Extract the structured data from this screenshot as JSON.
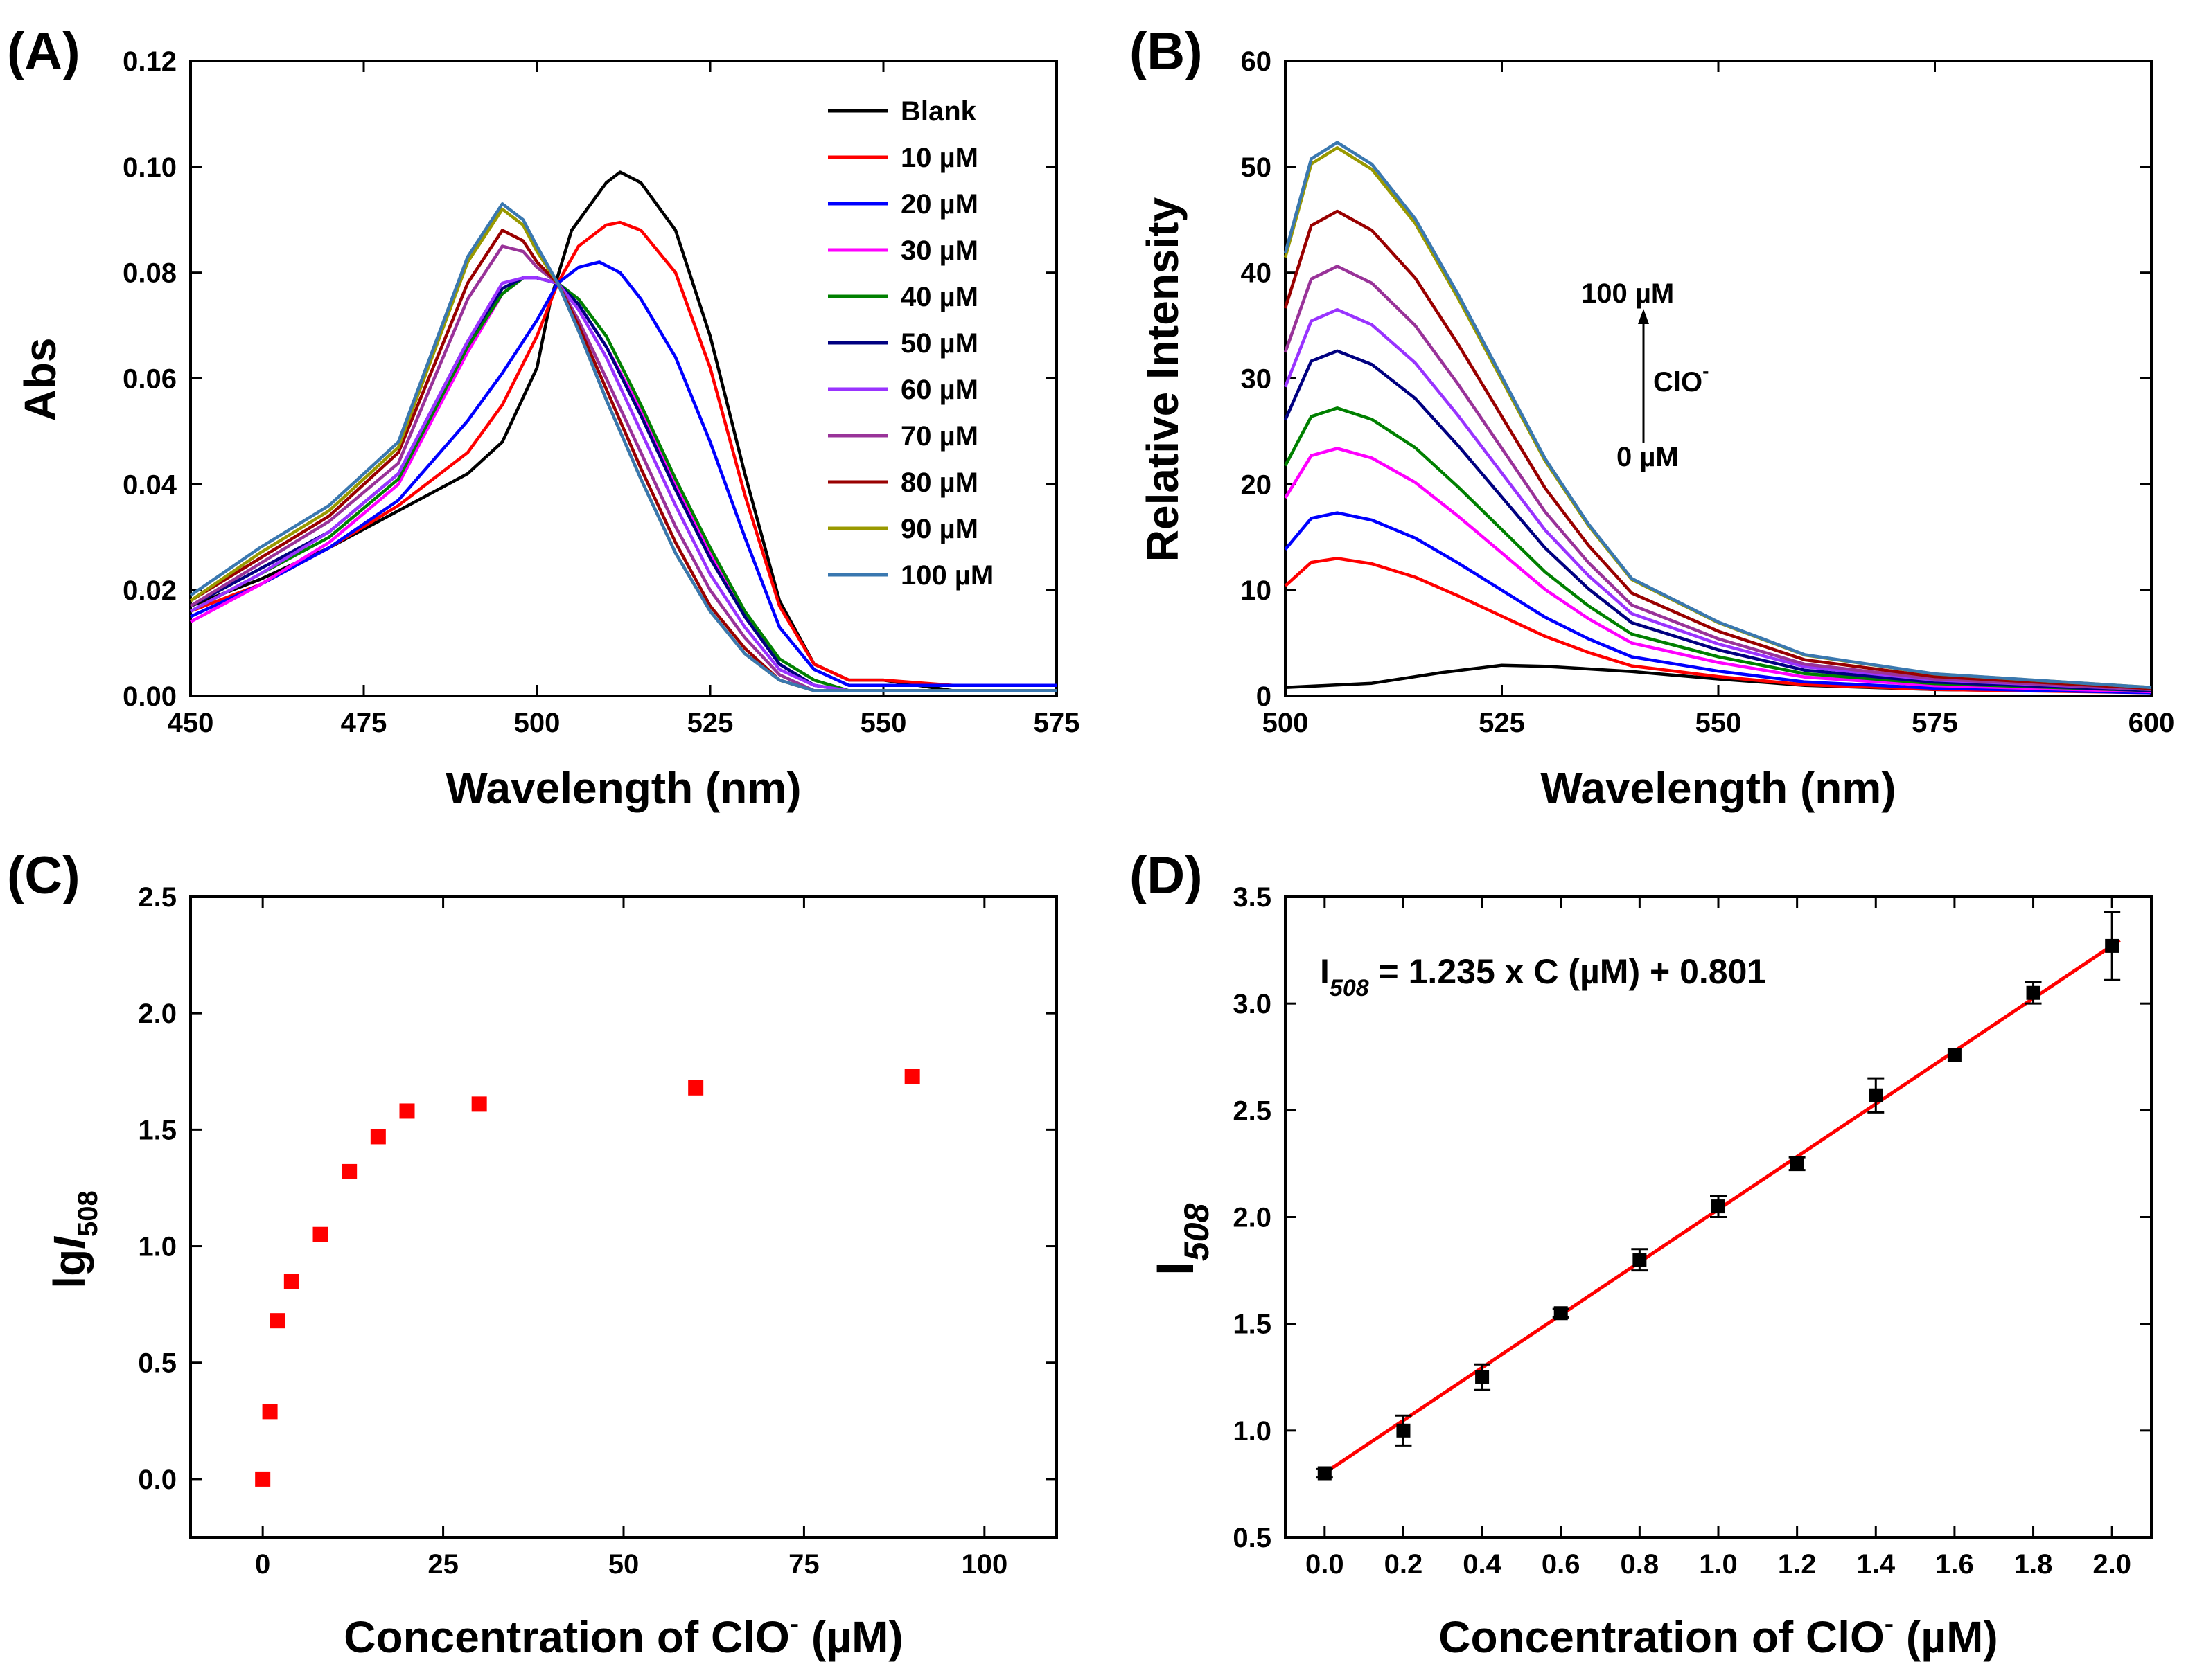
{
  "chart_data": [
    {
      "id": "A",
      "type": "line",
      "panel_label": "(A)",
      "xlabel": "Wavelength (nm)",
      "ylabel": "Abs",
      "xlim": [
        450,
        575
      ],
      "ylim": [
        0.0,
        0.12
      ],
      "xticks": [
        450,
        475,
        500,
        525,
        550,
        575
      ],
      "yticks": [
        "0.00",
        "0.02",
        "0.04",
        "0.06",
        "0.08",
        "0.10",
        "0.12"
      ],
      "legend_position": "top-right",
      "series": [
        {
          "name": "Blank",
          "color": "#000000",
          "x": [
            450,
            460,
            470,
            480,
            490,
            495,
            500,
            502,
            505,
            510,
            512,
            515,
            520,
            525,
            530,
            535,
            540,
            545,
            550,
            560,
            575
          ],
          "y": [
            0.017,
            0.022,
            0.028,
            0.035,
            0.042,
            0.048,
            0.062,
            0.075,
            0.088,
            0.097,
            0.099,
            0.097,
            0.088,
            0.068,
            0.042,
            0.018,
            0.006,
            0.003,
            0.003,
            0.001,
            0.001
          ]
        },
        {
          "name": "10 µM",
          "color": "#ff0000",
          "x": [
            450,
            460,
            470,
            480,
            490,
            495,
            500,
            503,
            506,
            510,
            512,
            515,
            520,
            525,
            530,
            535,
            540,
            545,
            550,
            560,
            575
          ],
          "y": [
            0.016,
            0.021,
            0.028,
            0.036,
            0.046,
            0.055,
            0.068,
            0.078,
            0.085,
            0.089,
            0.0895,
            0.088,
            0.08,
            0.062,
            0.038,
            0.017,
            0.006,
            0.003,
            0.003,
            0.002,
            0.002
          ]
        },
        {
          "name": "20 µM",
          "color": "#0000ff",
          "x": [
            450,
            460,
            470,
            480,
            490,
            495,
            500,
            503,
            506,
            509,
            512,
            515,
            520,
            525,
            530,
            535,
            540,
            545,
            550,
            560,
            575
          ],
          "y": [
            0.015,
            0.021,
            0.028,
            0.037,
            0.052,
            0.061,
            0.071,
            0.078,
            0.081,
            0.082,
            0.08,
            0.075,
            0.064,
            0.048,
            0.03,
            0.013,
            0.005,
            0.002,
            0.002,
            0.002,
            0.002
          ]
        },
        {
          "name": "30 µM",
          "color": "#ff00ff",
          "x": [
            450,
            460,
            470,
            480,
            490,
            495,
            498,
            500,
            503,
            506,
            510,
            515,
            520,
            525,
            530,
            535,
            540,
            545,
            550,
            560,
            575
          ],
          "y": [
            0.014,
            0.021,
            0.029,
            0.04,
            0.065,
            0.076,
            0.079,
            0.079,
            0.078,
            0.074,
            0.066,
            0.054,
            0.04,
            0.027,
            0.015,
            0.006,
            0.002,
            0.001,
            0.001,
            0.001,
            0.001
          ]
        },
        {
          "name": "40 µM",
          "color": "#008000",
          "x": [
            450,
            460,
            470,
            480,
            490,
            495,
            498,
            500,
            503,
            506,
            510,
            515,
            520,
            525,
            530,
            535,
            540,
            545,
            550,
            560,
            575
          ],
          "y": [
            0.016,
            0.023,
            0.03,
            0.041,
            0.066,
            0.076,
            0.079,
            0.079,
            0.078,
            0.075,
            0.068,
            0.055,
            0.041,
            0.028,
            0.016,
            0.007,
            0.003,
            0.001,
            0.001,
            0.001,
            0.001
          ]
        },
        {
          "name": "50 µM",
          "color": "#000080",
          "x": [
            450,
            460,
            470,
            480,
            490,
            495,
            498,
            500,
            503,
            506,
            510,
            515,
            520,
            525,
            530,
            535,
            540,
            545,
            550,
            560,
            575
          ],
          "y": [
            0.017,
            0.024,
            0.031,
            0.042,
            0.067,
            0.077,
            0.079,
            0.079,
            0.078,
            0.074,
            0.066,
            0.053,
            0.039,
            0.026,
            0.015,
            0.006,
            0.002,
            0.001,
            0.001,
            0.001,
            0.001
          ]
        },
        {
          "name": "60 µM",
          "color": "#9933ff",
          "x": [
            450,
            460,
            470,
            480,
            490,
            495,
            498,
            500,
            503,
            506,
            510,
            515,
            520,
            525,
            530,
            535,
            540,
            545,
            550,
            560,
            575
          ],
          "y": [
            0.016,
            0.023,
            0.031,
            0.042,
            0.067,
            0.078,
            0.079,
            0.079,
            0.078,
            0.073,
            0.064,
            0.05,
            0.036,
            0.023,
            0.013,
            0.005,
            0.002,
            0.001,
            0.001,
            0.001,
            0.001
          ]
        },
        {
          "name": "70 µM",
          "color": "#993399",
          "x": [
            450,
            460,
            470,
            480,
            490,
            495,
            498,
            500,
            503,
            506,
            510,
            515,
            520,
            525,
            530,
            535,
            540,
            545,
            550,
            560,
            575
          ],
          "y": [
            0.017,
            0.025,
            0.033,
            0.044,
            0.075,
            0.085,
            0.084,
            0.081,
            0.078,
            0.071,
            0.06,
            0.046,
            0.032,
            0.02,
            0.011,
            0.004,
            0.001,
            0.001,
            0.001,
            0.001,
            0.001
          ]
        },
        {
          "name": "80 µM",
          "color": "#990000",
          "x": [
            450,
            460,
            470,
            480,
            490,
            495,
            498,
            500,
            503,
            506,
            510,
            515,
            520,
            525,
            530,
            535,
            540,
            545,
            550,
            560,
            575
          ],
          "y": [
            0.018,
            0.026,
            0.034,
            0.046,
            0.078,
            0.088,
            0.086,
            0.082,
            0.078,
            0.07,
            0.058,
            0.043,
            0.029,
            0.017,
            0.009,
            0.003,
            0.001,
            0.001,
            0.001,
            0.001,
            0.001
          ]
        },
        {
          "name": "90 µM",
          "color": "#999900",
          "x": [
            450,
            460,
            470,
            480,
            490,
            495,
            498,
            500,
            503,
            506,
            510,
            515,
            520,
            525,
            530,
            535,
            540,
            545,
            550,
            560,
            575
          ],
          "y": [
            0.018,
            0.027,
            0.035,
            0.047,
            0.082,
            0.092,
            0.089,
            0.084,
            0.078,
            0.069,
            0.056,
            0.041,
            0.027,
            0.016,
            0.008,
            0.003,
            0.001,
            0.001,
            0.001,
            0.001,
            0.001
          ]
        },
        {
          "name": "100 µM",
          "color": "#3a78b0",
          "x": [
            450,
            460,
            470,
            480,
            490,
            495,
            498,
            500,
            503,
            506,
            510,
            515,
            520,
            525,
            530,
            535,
            540,
            545,
            550,
            560,
            575
          ],
          "y": [
            0.019,
            0.028,
            0.036,
            0.048,
            0.083,
            0.093,
            0.09,
            0.085,
            0.078,
            0.069,
            0.056,
            0.041,
            0.027,
            0.016,
            0.008,
            0.003,
            0.001,
            0.001,
            0.001,
            0.001,
            0.001
          ]
        }
      ]
    },
    {
      "id": "B",
      "type": "line",
      "panel_label": "(B)",
      "xlabel": "Wavelength (nm)",
      "ylabel": "Relative Intensity",
      "xlim": [
        500,
        600
      ],
      "ylim": [
        0,
        60
      ],
      "xticks": [
        500,
        525,
        550,
        575,
        600
      ],
      "yticks": [
        0,
        10,
        20,
        30,
        40,
        50,
        60
      ],
      "annotation": {
        "top": "100 µM",
        "middle": "ClO",
        "middle_sup": "-",
        "bottom": "0 µM"
      },
      "peaks": [
        0.9,
        13,
        17.3,
        23.4,
        27.2,
        32.6,
        36.5,
        40.6,
        45.8,
        51.8,
        52.3
      ],
      "tails": [
        0.4,
        0.3,
        0.3,
        0.4,
        0.5,
        0.5,
        0.6,
        0.6,
        0.7,
        0.8,
        0.8
      ],
      "series_names": [
        "0 µM",
        "10 µM",
        "20 µM",
        "30 µM",
        "40 µM",
        "50 µM",
        "60 µM",
        "70 µM",
        "80 µM",
        "90 µM",
        "100 µM"
      ],
      "series_colors": [
        "#000000",
        "#ff0000",
        "#0000ff",
        "#ff00ff",
        "#008000",
        "#000080",
        "#9933ff",
        "#993399",
        "#990000",
        "#999900",
        "#3a78b0"
      ]
    },
    {
      "id": "C",
      "type": "scatter",
      "panel_label": "(C)",
      "xlabel": "Concentration of ClO",
      "xlabel_sup": "-",
      "xlabel_unit": " (µM)",
      "ylabel_prefix": "lg",
      "ylabel_italic": "I",
      "ylabel_sub": "508",
      "xlim": [
        -10,
        110
      ],
      "ylim": [
        -0.25,
        2.5
      ],
      "xticks": [
        0,
        25,
        50,
        75,
        100
      ],
      "yticks": [
        "0.0",
        "0.5",
        "1.0",
        "1.5",
        "2.0",
        "2.5"
      ],
      "marker_color": "#ff0000",
      "x": [
        0,
        1,
        2,
        4,
        8,
        12,
        16,
        20,
        30,
        60,
        90
      ],
      "y": [
        0.0,
        0.29,
        0.68,
        0.85,
        1.05,
        1.32,
        1.47,
        1.58,
        1.61,
        1.68,
        1.73
      ]
    },
    {
      "id": "D",
      "type": "scatter",
      "panel_label": "(D)",
      "xlabel": "Concentration of ClO",
      "xlabel_sup": "-",
      "xlabel_unit": " (µM)",
      "ylabel_main": "I",
      "ylabel_sub": "508",
      "xlim": [
        -0.1,
        2.1
      ],
      "ylim": [
        0.5,
        3.5
      ],
      "xticks": [
        "0.0",
        "0.2",
        "0.4",
        "0.6",
        "0.8",
        "1.0",
        "1.2",
        "1.4",
        "1.6",
        "1.8",
        "2.0"
      ],
      "yticks": [
        "0.5",
        "1.0",
        "1.5",
        "2.0",
        "2.5",
        "3.0",
        "3.5"
      ],
      "equation": {
        "left": "I",
        "sub": "508",
        "right": " = 1.235 x C (µM) + 0.801"
      },
      "fit": {
        "slope": 1.235,
        "intercept": 0.801,
        "color": "#ff0000",
        "x_range": [
          -0.01,
          2.02
        ]
      },
      "x": [
        0,
        0.2,
        0.4,
        0.6,
        0.8,
        1.0,
        1.2,
        1.4,
        1.6,
        1.8,
        2.0
      ],
      "y": [
        0.8,
        1.0,
        1.25,
        1.55,
        1.8,
        2.05,
        2.25,
        2.57,
        2.76,
        3.05,
        3.27
      ],
      "err": [
        0.02,
        0.07,
        0.06,
        0.02,
        0.05,
        0.05,
        0.03,
        0.08,
        0.01,
        0.05,
        0.16
      ]
    }
  ]
}
